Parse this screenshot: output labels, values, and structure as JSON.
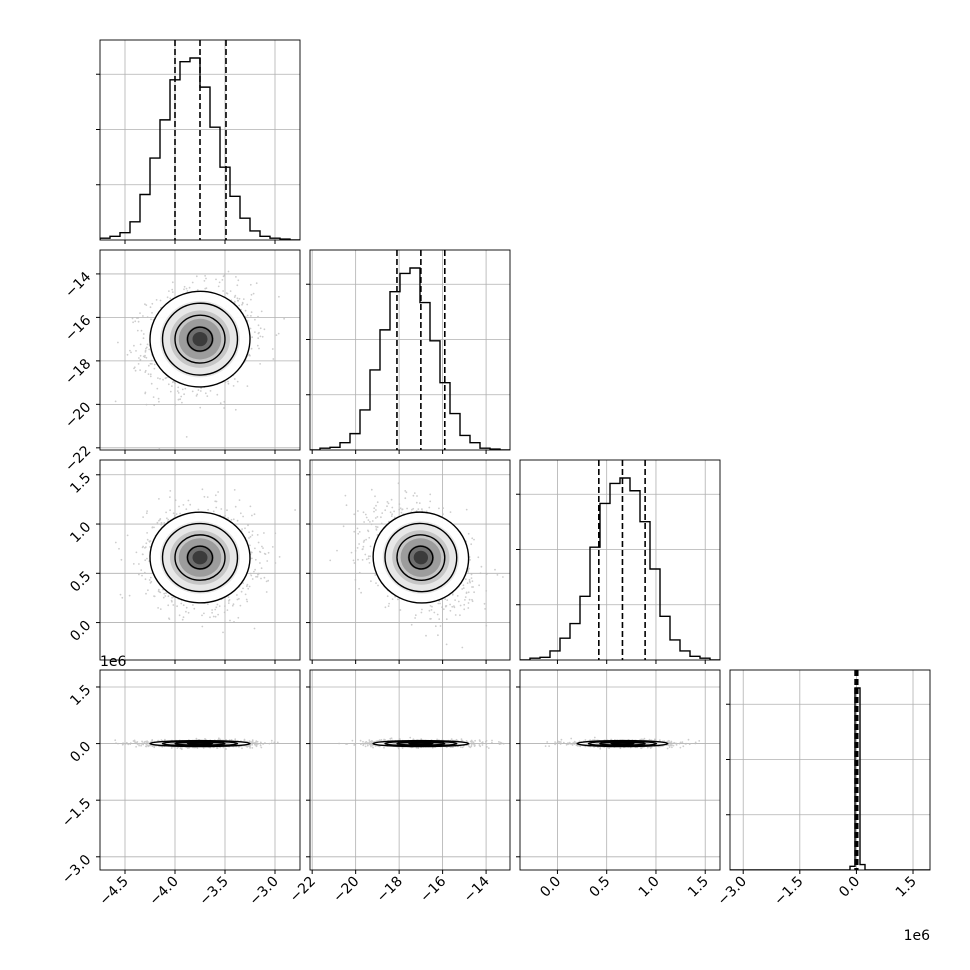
{
  "chart_data": {
    "type": "corner",
    "title": "",
    "grid": true,
    "parameters": [
      {
        "ticks": [
          -4.5,
          -4.0,
          -3.5,
          -3.0
        ],
        "tick_labels": [
          "−4.5",
          "−4.0",
          "−3.5",
          "−3.0"
        ],
        "range": [
          -4.75,
          -2.75
        ],
        "multiplier": "",
        "quantiles": [
          -4.0,
          -3.75,
          -3.49
        ],
        "hist_counts": [
          0.01,
          0.02,
          0.04,
          0.1,
          0.25,
          0.45,
          0.66,
          0.88,
          0.98,
          1.0,
          0.84,
          0.62,
          0.4,
          0.24,
          0.12,
          0.05,
          0.02,
          0.01,
          0.005,
          0.0
        ]
      },
      {
        "ticks": [
          -22,
          -20,
          -18,
          -16,
          -14
        ],
        "tick_labels": [
          "−22",
          "−20",
          "−18",
          "−16",
          "−14"
        ],
        "range": [
          -22.1,
          -12.9
        ],
        "multiplier": "",
        "quantiles": [
          -18.1,
          -17.0,
          -15.9
        ],
        "hist_counts": [
          0.0,
          0.01,
          0.015,
          0.04,
          0.09,
          0.22,
          0.44,
          0.66,
          0.87,
          0.97,
          1.0,
          0.81,
          0.6,
          0.37,
          0.2,
          0.08,
          0.04,
          0.01,
          0.005,
          0.0
        ]
      },
      {
        "ticks": [
          0.0,
          0.5,
          1.0,
          1.5
        ],
        "tick_labels": [
          "0.0",
          "0.5",
          "1.0",
          "1.5"
        ],
        "range": [
          -0.38,
          1.65
        ],
        "multiplier": "",
        "quantiles": [
          0.42,
          0.66,
          0.89
        ],
        "hist_counts": [
          0.0,
          0.01,
          0.015,
          0.05,
          0.12,
          0.2,
          0.35,
          0.62,
          0.86,
          0.97,
          1.0,
          0.93,
          0.76,
          0.5,
          0.24,
          0.11,
          0.05,
          0.02,
          0.01,
          0.0
        ]
      },
      {
        "ticks": [
          -3.0,
          -1.5,
          0.0,
          1.5
        ],
        "tick_labels": [
          "−3.0",
          "−1.5",
          "0.0",
          "1.5"
        ],
        "range": [
          -3.35,
          1.95
        ],
        "multiplier": "1e6",
        "quantiles": [
          -0.035,
          0.0,
          0.035
        ],
        "hist_counts": [
          0.0,
          0.0,
          0.0,
          0.0,
          0.0,
          0.0,
          0.0,
          0.0,
          0.0,
          0.0,
          0.0,
          0.0,
          0.0,
          0.0,
          0.0,
          0.0,
          0.0,
          0.0,
          0.0,
          0.0,
          0.0,
          0.0,
          0.0,
          0.0,
          0.02,
          1.0,
          0.03,
          0.0,
          0.0,
          0.0,
          0.0,
          0.0,
          0.0,
          0.0,
          0.0,
          0.0,
          0.0,
          0.0,
          0.0,
          0.0
        ]
      }
    ],
    "pairs": [
      {
        "row": 1,
        "col": 0,
        "center": [
          -3.75,
          -17.0
        ],
        "sigma": [
          0.25,
          1.1
        ],
        "rho": 0.12
      },
      {
        "row": 2,
        "col": 0,
        "center": [
          -3.75,
          0.66
        ],
        "sigma": [
          0.25,
          0.23
        ],
        "rho": -0.05
      },
      {
        "row": 2,
        "col": 1,
        "center": [
          -17.0,
          0.66
        ],
        "sigma": [
          1.1,
          0.23
        ],
        "rho": -0.35
      },
      {
        "row": 3,
        "col": 0,
        "center": [
          -3.75,
          0.0
        ],
        "sigma": [
          0.25,
          0.04
        ],
        "rho": 0.0
      },
      {
        "row": 3,
        "col": 1,
        "center": [
          -17.0,
          0.0
        ],
        "sigma": [
          1.1,
          0.04
        ],
        "rho": 0.0
      },
      {
        "row": 3,
        "col": 2,
        "center": [
          0.66,
          0.0
        ],
        "sigma": [
          0.23,
          0.04
        ],
        "rho": 0.0
      }
    ],
    "contour_levels_sigma": [
      0.5,
      1.0,
      1.5,
      2.0
    ],
    "colors": {
      "line": "#000000",
      "grid": "#b0b0b0",
      "points": "#bdbdbd"
    }
  }
}
